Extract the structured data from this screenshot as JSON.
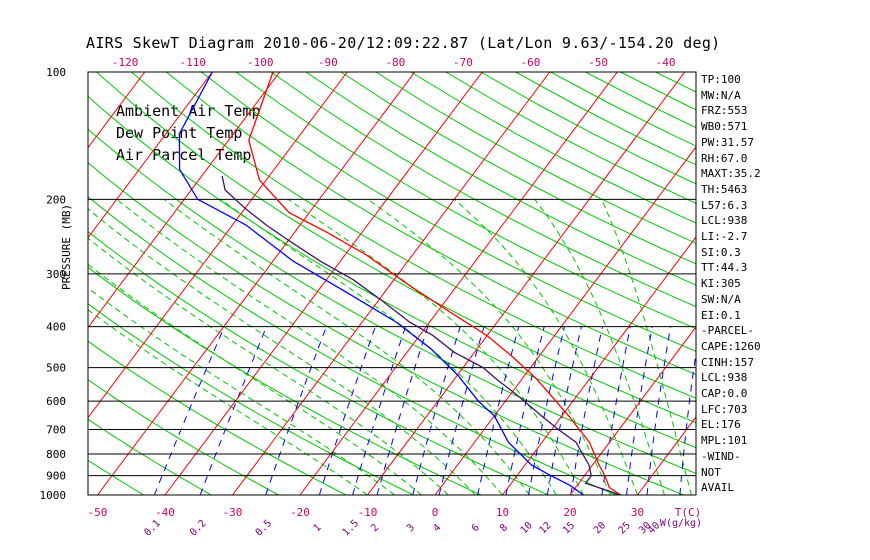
{
  "chart_data": {
    "type": "line",
    "title": "AIRS SkewT Diagram 2010-06-20/12:09:22.87 (Lat/Lon 9.63/-154.20 deg)",
    "ylabel": "PRESSURE (MB)",
    "x_unit_label": "T(C)",
    "mixing_ratio_unit_label": "W(g/kg)",
    "y_scale": "log",
    "ylim": [
      1000,
      100
    ],
    "xlim": [
      -50,
      40
    ],
    "pressure_levels": [
      100,
      200,
      300,
      400,
      500,
      600,
      700,
      800,
      900,
      1000
    ],
    "pressure_level_labels": [
      "100",
      "200",
      "300",
      "400",
      "500",
      "600",
      "700",
      "800",
      "900",
      "1000"
    ],
    "bottom_temp_ticks": [
      -50,
      -40,
      -30,
      -20,
      -10,
      0,
      10,
      20,
      30
    ],
    "bottom_temp_labels": [
      "-50",
      "-40",
      "-30",
      "-20",
      "-10",
      "0",
      "10",
      "20",
      "30"
    ],
    "top_temp_ticks": [
      -120,
      -110,
      -100,
      -90,
      -80,
      -70,
      -60,
      -50,
      -40
    ],
    "top_temp_labels": [
      "-120",
      "-110",
      "-100",
      "-90",
      "-80",
      "-70",
      "-60",
      "-50",
      "-40"
    ],
    "mixing_ratio_labels": [
      "0.1",
      "0.2",
      "0.5",
      "1",
      "1.5",
      "2",
      "3",
      "4",
      "6",
      "8",
      "10",
      "12",
      "15",
      "20",
      "25",
      "30",
      "40"
    ],
    "legend": [
      {
        "name": "Ambient Air Temp",
        "color": "#ff0000"
      },
      {
        "name": "Dew Point Temp",
        "color": "#0000ff"
      },
      {
        "name": "Air Parcel Temp",
        "color": "#9b30ff"
      }
    ],
    "colors": {
      "dry_adiabat": "#00c800",
      "moist_adiabat": "#00c800",
      "isotherm": "#ff0000",
      "mixing_ratio": "#0000ff",
      "instability_hatch": "#3c1464",
      "axis_text": "#cc0066"
    },
    "series": [
      {
        "name": "Ambient Air Temp",
        "points": [
          [
            27.5,
            1000
          ],
          [
            25,
            960
          ],
          [
            23,
            900
          ],
          [
            21,
            850
          ],
          [
            17,
            750
          ],
          [
            11,
            650
          ],
          [
            6,
            580
          ],
          [
            2,
            530
          ],
          [
            -4,
            470
          ],
          [
            -10,
            420
          ],
          [
            -18,
            370
          ],
          [
            -27,
            320
          ],
          [
            -37,
            270
          ],
          [
            -45,
            240
          ],
          [
            -53,
            215
          ],
          [
            -61,
            180
          ],
          [
            -67,
            145
          ],
          [
            -71,
            100
          ]
        ]
      },
      {
        "name": "Dew Point Temp",
        "points": [
          [
            22,
            1000
          ],
          [
            19,
            950
          ],
          [
            15,
            900
          ],
          [
            11,
            850
          ],
          [
            5,
            750
          ],
          [
            0,
            650
          ],
          [
            -4,
            600
          ],
          [
            -10,
            520
          ],
          [
            -17,
            450
          ],
          [
            -25,
            390
          ],
          [
            -36,
            330
          ],
          [
            -47,
            280
          ],
          [
            -58,
            230
          ],
          [
            -68,
            200
          ],
          [
            -74,
            170
          ],
          [
            -78,
            140
          ],
          [
            -80,
            100
          ]
        ]
      },
      {
        "name": "Air Parcel Temp",
        "points": [
          [
            27.5,
            1000
          ],
          [
            21,
            938
          ],
          [
            21,
            900
          ],
          [
            19.5,
            850
          ],
          [
            15,
            750
          ],
          [
            11,
            700
          ],
          [
            7,
            650
          ],
          [
            1,
            580
          ],
          [
            -4,
            530
          ],
          [
            -7,
            500
          ],
          [
            -13,
            460
          ],
          [
            -18,
            420
          ],
          [
            -23,
            390
          ],
          [
            -29,
            350
          ],
          [
            -36,
            310
          ],
          [
            -43,
            280
          ],
          [
            -50,
            250
          ],
          [
            -55,
            230
          ],
          [
            -60,
            210
          ],
          [
            -65,
            190
          ],
          [
            -67,
            176
          ]
        ]
      }
    ],
    "hatch_region": {
      "from_pressure": 703,
      "to_pressure": 176
    }
  },
  "indices": [
    "TP:100",
    "MW:N/A",
    "FRZ:553",
    "WB0:571",
    "PW:31.57",
    "RH:67.0",
    "MAXT:35.2",
    "TH:5463",
    "L57:6.3",
    "LCL:938",
    "LI:-2.7",
    "SI:0.3",
    "TT:44.3",
    "KI:305",
    "SW:N/A",
    "EI:0.1",
    "-PARCEL-",
    "CAPE:1260",
    "CINH:157",
    "LCL:938",
    "CAP:0.0",
    "LFC:703",
    "EL:176",
    "MPL:101",
    "-WIND-",
    "NOT",
    "AVAIL"
  ]
}
